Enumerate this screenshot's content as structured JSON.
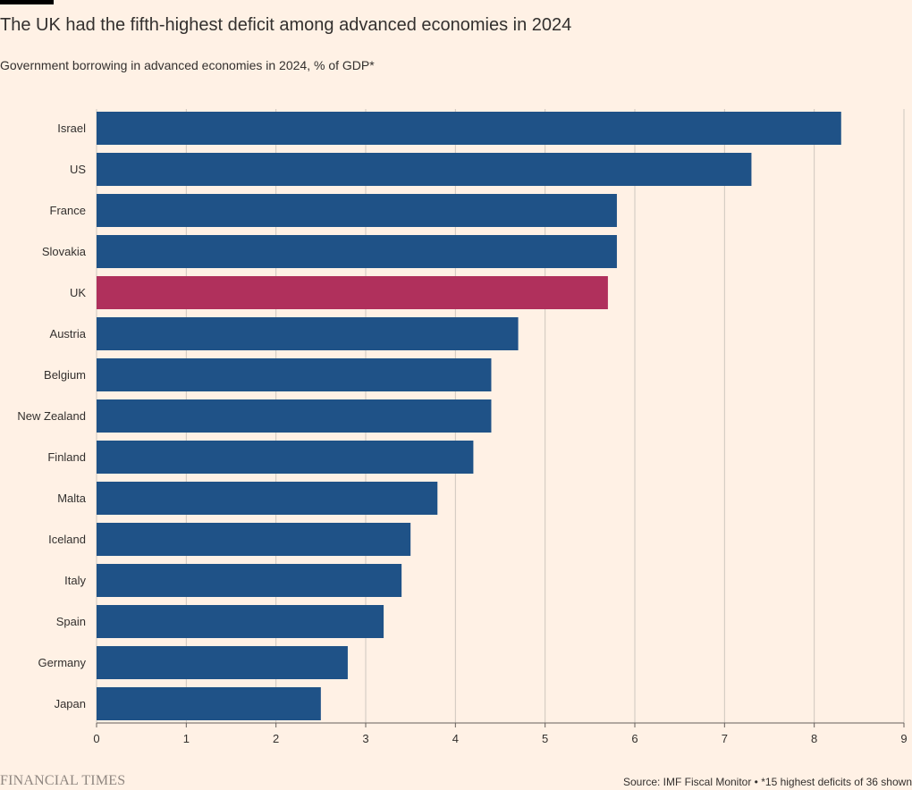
{
  "title": "The UK had the fifth-highest deficit among advanced economies in 2024",
  "subtitle": "Government borrowing in advanced economies in 2024, % of GDP*",
  "brand": "FINANCIAL TIMES",
  "source": "Source: IMF Fiscal Monitor • *15 highest deficits of 36 shown",
  "colors": {
    "background": "#FFF1E5",
    "bar": "#1F5287",
    "highlight": "#B0305C",
    "grid": "#CEC6BE",
    "text": "#33302E"
  },
  "chart_data": {
    "type": "bar",
    "orientation": "horizontal",
    "title": "The UK had the fifth-highest deficit among advanced economies in 2024",
    "subtitle": "Government borrowing in advanced economies in 2024, % of GDP*",
    "xlabel": "",
    "ylabel": "",
    "xlim": [
      0,
      9
    ],
    "xticks": [
      0,
      1,
      2,
      3,
      4,
      5,
      6,
      7,
      8,
      9
    ],
    "grid": true,
    "highlight": "UK",
    "categories": [
      "Israel",
      "US",
      "France",
      "Slovakia",
      "UK",
      "Austria",
      "Belgium",
      "New Zealand",
      "Finland",
      "Malta",
      "Iceland",
      "Italy",
      "Spain",
      "Germany",
      "Japan"
    ],
    "values": [
      8.3,
      7.3,
      5.8,
      5.8,
      5.7,
      4.7,
      4.4,
      4.4,
      4.2,
      3.8,
      3.5,
      3.4,
      3.2,
      2.8,
      2.5
    ]
  }
}
